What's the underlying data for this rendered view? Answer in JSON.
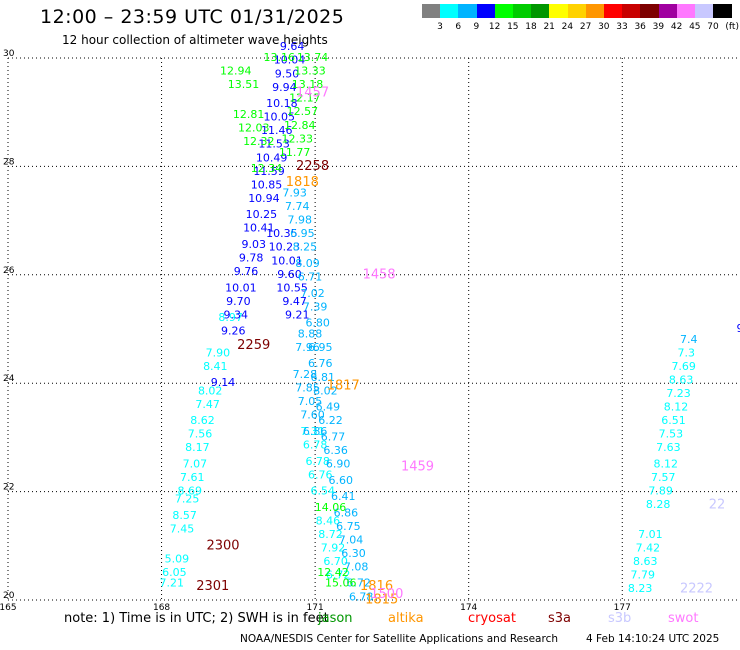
{
  "header": {
    "title": "12:00 – 23:59 UTC 01/31/2025",
    "subtitle": "12 hour collection of altimeter wave heights"
  },
  "color_scale": {
    "unit": "(ft)",
    "levels": [
      {
        "label": "3",
        "color": "#808080"
      },
      {
        "label": "6",
        "color": "#00ffff"
      },
      {
        "label": "9",
        "color": "#00b4ff"
      },
      {
        "label": "12",
        "color": "#0000ff"
      },
      {
        "label": "15",
        "color": "#00ff00"
      },
      {
        "label": "18",
        "color": "#00cc00"
      },
      {
        "label": "21",
        "color": "#009600"
      },
      {
        "label": "24",
        "color": "#ffff00"
      },
      {
        "label": "27",
        "color": "#ffd200"
      },
      {
        "label": "30",
        "color": "#ff9600"
      },
      {
        "label": "33",
        "color": "#ff0000"
      },
      {
        "label": "36",
        "color": "#c80000"
      },
      {
        "label": "39",
        "color": "#7d0000"
      },
      {
        "label": "42",
        "color": "#a000a0"
      },
      {
        "label": "45",
        "color": "#ff78ff"
      },
      {
        "label": "70",
        "color": "#c8c8ff"
      },
      {
        "label": "",
        "color": "#000000"
      }
    ]
  },
  "chart_data": {
    "type": "scatter",
    "title": "12:00 – 23:59 UTC 01/31/2025",
    "subtitle": "12 hour collection of altimeter wave heights",
    "xlim": [
      165,
      179.3
    ],
    "ylim": [
      20,
      30
    ],
    "x_ticks": [
      165,
      168,
      171,
      174,
      177
    ],
    "y_ticks": [
      20,
      22,
      24,
      26,
      28,
      30
    ],
    "grid": true,
    "series": [
      {
        "name": "sentinel",
        "color": "#00ffff",
        "points": [
          {
            "x": 168.2,
            "y": 20.3,
            "label": "7.21"
          },
          {
            "x": 168.25,
            "y": 20.5,
            "label": "6.05"
          },
          {
            "x": 168.3,
            "y": 20.75,
            "label": "5.09"
          },
          {
            "x": 168.4,
            "y": 21.3,
            "label": "7.45"
          },
          {
            "x": 168.45,
            "y": 21.55,
            "label": "8.57"
          },
          {
            "x": 168.5,
            "y": 21.85,
            "label": "7.25"
          },
          {
            "x": 168.55,
            "y": 22.0,
            "label": "8.69"
          },
          {
            "x": 168.6,
            "y": 22.25,
            "label": "7.61"
          },
          {
            "x": 168.65,
            "y": 22.5,
            "label": "7.07"
          },
          {
            "x": 168.7,
            "y": 22.8,
            "label": "8.17"
          },
          {
            "x": 168.75,
            "y": 23.05,
            "label": "7.56"
          },
          {
            "x": 168.8,
            "y": 23.3,
            "label": "8.62"
          },
          {
            "x": 168.9,
            "y": 23.6,
            "label": "7.47"
          },
          {
            "x": 168.95,
            "y": 23.85,
            "label": "8.02"
          },
          {
            "x": 169.05,
            "y": 24.3,
            "label": "8.41"
          },
          {
            "x": 169.1,
            "y": 24.55,
            "label": "7.90"
          },
          {
            "x": 169.35,
            "y": 25.2,
            "label": "8.97"
          },
          {
            "x": 170.95,
            "y": 23.1,
            "label": "7.31"
          },
          {
            "x": 171.0,
            "y": 22.85,
            "label": "6.78"
          },
          {
            "x": 171.05,
            "y": 22.55,
            "label": "6.78"
          },
          {
            "x": 171.1,
            "y": 22.3,
            "label": "6.76"
          },
          {
            "x": 171.15,
            "y": 22.0,
            "label": "6.54"
          },
          {
            "x": 171.25,
            "y": 21.45,
            "label": "8.46"
          },
          {
            "x": 171.3,
            "y": 21.2,
            "label": "8.72"
          },
          {
            "x": 171.35,
            "y": 20.95,
            "label": "7.92"
          },
          {
            "x": 171.4,
            "y": 20.7,
            "label": "6.70"
          },
          {
            "x": 171.45,
            "y": 20.45,
            "label": "6.72"
          },
          {
            "x": 177.35,
            "y": 20.2,
            "label": "8.23"
          },
          {
            "x": 177.4,
            "y": 20.45,
            "label": "7.79"
          },
          {
            "x": 177.45,
            "y": 20.7,
            "label": "8.63"
          },
          {
            "x": 177.5,
            "y": 20.95,
            "label": "7.42"
          },
          {
            "x": 177.55,
            "y": 21.2,
            "label": "7.01"
          },
          {
            "x": 177.7,
            "y": 21.75,
            "label": "8.28"
          },
          {
            "x": 177.75,
            "y": 22.0,
            "label": "7.89"
          },
          {
            "x": 177.8,
            "y": 22.25,
            "label": "7.57"
          },
          {
            "x": 177.85,
            "y": 22.5,
            "label": "8.12"
          },
          {
            "x": 177.9,
            "y": 22.8,
            "label": "7.63"
          },
          {
            "x": 177.95,
            "y": 23.05,
            "label": "7.53"
          },
          {
            "x": 178.0,
            "y": 23.3,
            "label": "6.51"
          },
          {
            "x": 178.05,
            "y": 23.55,
            "label": "8.12"
          },
          {
            "x": 178.1,
            "y": 23.8,
            "label": "7.23"
          },
          {
            "x": 178.15,
            "y": 24.05,
            "label": "8.63"
          },
          {
            "x": 178.2,
            "y": 24.3,
            "label": "7.69"
          },
          {
            "x": 178.25,
            "y": 24.55,
            "label": "7.3"
          }
        ]
      },
      {
        "name": "jason",
        "color": "#0000ff",
        "points": [
          {
            "x": 169.2,
            "y": 24.0,
            "label": "9.14"
          },
          {
            "x": 169.4,
            "y": 24.95,
            "label": "9.26"
          },
          {
            "x": 169.45,
            "y": 25.25,
            "label": "9.34"
          },
          {
            "x": 169.5,
            "y": 25.5,
            "label": "9.70"
          },
          {
            "x": 169.55,
            "y": 25.75,
            "label": "10.01"
          },
          {
            "x": 169.65,
            "y": 26.05,
            "label": "9.76"
          },
          {
            "x": 169.75,
            "y": 26.3,
            "label": "9.78"
          },
          {
            "x": 169.8,
            "y": 26.55,
            "label": "9.03"
          },
          {
            "x": 169.9,
            "y": 26.85,
            "label": "10.41"
          },
          {
            "x": 169.95,
            "y": 27.1,
            "label": "10.25"
          },
          {
            "x": 170.0,
            "y": 27.4,
            "label": "10.94"
          },
          {
            "x": 170.05,
            "y": 27.65,
            "label": "10.85"
          },
          {
            "x": 170.1,
            "y": 27.9,
            "label": "11.59"
          },
          {
            "x": 170.15,
            "y": 28.15,
            "label": "10.49"
          },
          {
            "x": 170.2,
            "y": 28.4,
            "label": "11.53"
          },
          {
            "x": 170.25,
            "y": 28.65,
            "label": "11.46"
          },
          {
            "x": 170.3,
            "y": 28.9,
            "label": "10.05"
          },
          {
            "x": 170.35,
            "y": 29.15,
            "label": "10.18"
          },
          {
            "x": 170.4,
            "y": 29.45,
            "label": "9.94"
          },
          {
            "x": 170.45,
            "y": 29.7,
            "label": "9.50"
          },
          {
            "x": 170.5,
            "y": 29.95,
            "label": "10.04"
          },
          {
            "x": 170.55,
            "y": 30.2,
            "label": "9.64"
          },
          {
            "x": 170.35,
            "y": 26.75,
            "label": "10.35"
          },
          {
            "x": 170.4,
            "y": 26.5,
            "label": "10.23"
          },
          {
            "x": 170.45,
            "y": 26.25,
            "label": "10.01"
          },
          {
            "x": 170.5,
            "y": 26.0,
            "label": "9.60"
          },
          {
            "x": 170.55,
            "y": 25.75,
            "label": "10.55"
          },
          {
            "x": 170.6,
            "y": 25.5,
            "label": "9.47"
          },
          {
            "x": 170.65,
            "y": 25.25,
            "label": "9.21"
          },
          {
            "x": 179.3,
            "y": 25.0,
            "label": "9"
          }
        ]
      },
      {
        "name": "jason",
        "color": "#00b4ff",
        "points": [
          {
            "x": 170.6,
            "y": 27.5,
            "label": "7.93"
          },
          {
            "x": 170.65,
            "y": 27.25,
            "label": "7.74"
          },
          {
            "x": 170.7,
            "y": 27.0,
            "label": "7.98"
          },
          {
            "x": 170.75,
            "y": 26.75,
            "label": "6.95"
          },
          {
            "x": 170.8,
            "y": 26.5,
            "label": "8.25"
          },
          {
            "x": 170.85,
            "y": 26.2,
            "label": "8.09"
          },
          {
            "x": 170.9,
            "y": 25.95,
            "label": "6.71"
          },
          {
            "x": 170.95,
            "y": 25.65,
            "label": "7.02"
          },
          {
            "x": 171.0,
            "y": 25.4,
            "label": "7.39"
          },
          {
            "x": 171.05,
            "y": 25.1,
            "label": "6.80"
          },
          {
            "x": 170.9,
            "y": 24.9,
            "label": "8.88"
          },
          {
            "x": 170.85,
            "y": 24.65,
            "label": "7.96"
          },
          {
            "x": 171.1,
            "y": 24.65,
            "label": "6.95"
          },
          {
            "x": 171.1,
            "y": 24.35,
            "label": "6.76"
          },
          {
            "x": 170.8,
            "y": 24.15,
            "label": "7.28"
          },
          {
            "x": 170.85,
            "y": 23.9,
            "label": "7.85"
          },
          {
            "x": 171.15,
            "y": 24.1,
            "label": "6.81"
          },
          {
            "x": 171.2,
            "y": 23.85,
            "label": "8.02"
          },
          {
            "x": 170.9,
            "y": 23.65,
            "label": "7.05"
          },
          {
            "x": 170.95,
            "y": 23.4,
            "label": "7.60"
          },
          {
            "x": 171.25,
            "y": 23.55,
            "label": "6.49"
          },
          {
            "x": 171.3,
            "y": 23.3,
            "label": "6.22"
          },
          {
            "x": 171.0,
            "y": 23.1,
            "label": "6.86"
          },
          {
            "x": 171.35,
            "y": 23.0,
            "label": "6.77"
          },
          {
            "x": 171.4,
            "y": 22.75,
            "label": "6.36"
          },
          {
            "x": 171.45,
            "y": 22.5,
            "label": "6.90"
          },
          {
            "x": 171.5,
            "y": 22.2,
            "label": "6.60"
          },
          {
            "x": 171.55,
            "y": 21.9,
            "label": "6.41"
          },
          {
            "x": 171.6,
            "y": 21.6,
            "label": "6.86"
          },
          {
            "x": 171.65,
            "y": 21.35,
            "label": "6.75"
          },
          {
            "x": 171.7,
            "y": 21.1,
            "label": "7.04"
          },
          {
            "x": 171.75,
            "y": 20.85,
            "label": "6.30"
          },
          {
            "x": 171.8,
            "y": 20.6,
            "label": "7.08"
          },
          {
            "x": 171.85,
            "y": 20.3,
            "label": "6.72"
          },
          {
            "x": 171.9,
            "y": 20.05,
            "label": "6.78"
          },
          {
            "x": 178.3,
            "y": 24.8,
            "label": "7.4"
          }
        ]
      },
      {
        "name": "jason",
        "color": "#00ff00",
        "points": [
          {
            "x": 169.45,
            "y": 29.75,
            "label": "12.94"
          },
          {
            "x": 169.6,
            "y": 29.5,
            "label": "13.51"
          },
          {
            "x": 169.7,
            "y": 28.95,
            "label": "12.81"
          },
          {
            "x": 169.8,
            "y": 28.7,
            "label": "12.03"
          },
          {
            "x": 169.9,
            "y": 28.45,
            "label": "12.32"
          },
          {
            "x": 170.05,
            "y": 27.95,
            "label": "12.34"
          },
          {
            "x": 170.3,
            "y": 30.0,
            "label": "13.16"
          },
          {
            "x": 170.95,
            "y": 30.0,
            "label": "13.74"
          },
          {
            "x": 170.9,
            "y": 29.75,
            "label": "13.33"
          },
          {
            "x": 170.85,
            "y": 29.5,
            "label": "13.18"
          },
          {
            "x": 170.8,
            "y": 29.25,
            "label": "12.17"
          },
          {
            "x": 170.75,
            "y": 29.0,
            "label": "12.57"
          },
          {
            "x": 170.7,
            "y": 28.75,
            "label": "12.84"
          },
          {
            "x": 170.65,
            "y": 28.5,
            "label": "12.33"
          },
          {
            "x": 170.6,
            "y": 28.25,
            "label": "11.77"
          },
          {
            "x": 171.3,
            "y": 21.7,
            "label": "14.06"
          },
          {
            "x": 171.35,
            "y": 20.5,
            "label": "12.42"
          },
          {
            "x": 171.5,
            "y": 20.3,
            "label": "15.06"
          }
        ]
      },
      {
        "name": "altika",
        "color": "#ff9600",
        "points": [
          {
            "x": 170.75,
            "y": 27.7,
            "label": "1818"
          },
          {
            "x": 171.55,
            "y": 23.95,
            "label": "1817"
          },
          {
            "x": 172.2,
            "y": 20.25,
            "label": "1816"
          },
          {
            "x": 172.3,
            "y": 20.0,
            "label": "1815"
          }
        ]
      },
      {
        "name": "s3a",
        "color": "#7d0000",
        "points": [
          {
            "x": 170.95,
            "y": 28.0,
            "label": "2258"
          },
          {
            "x": 169.8,
            "y": 24.7,
            "label": "2259"
          },
          {
            "x": 169.2,
            "y": 21.0,
            "label": "2300"
          },
          {
            "x": 169.0,
            "y": 20.25,
            "label": "2301"
          }
        ]
      },
      {
        "name": "s3b",
        "color": "#c8c8ff",
        "points": [
          {
            "x": 178.85,
            "y": 21.75,
            "label": "22"
          },
          {
            "x": 178.45,
            "y": 20.2,
            "label": "2222"
          }
        ]
      },
      {
        "name": "swot",
        "color": "#ff78ff",
        "points": [
          {
            "x": 170.95,
            "y": 29.35,
            "label": "1457"
          },
          {
            "x": 172.25,
            "y": 26.0,
            "label": "1458"
          },
          {
            "x": 173.0,
            "y": 22.45,
            "label": "1459"
          },
          {
            "x": 172.4,
            "y": 20.1,
            "label": "1500"
          }
        ]
      }
    ]
  },
  "legend": {
    "note": "note:  1) Time is in UTC; 2) SWH is in feet",
    "missions": [
      {
        "name": "jason",
        "color": "#009600"
      },
      {
        "name": "altika",
        "color": "#ff9600"
      },
      {
        "name": "cryosat",
        "color": "#ff0000"
      },
      {
        "name": "s3a",
        "color": "#7d0000"
      },
      {
        "name": "s3b",
        "color": "#c8c8ff"
      },
      {
        "name": "swot",
        "color": "#ff78ff"
      }
    ]
  },
  "footer": {
    "credit": "NOAA/NESDIS Center for Satellite Applications and Research",
    "timestamp": "4 Feb 14:10:24 UTC 2025"
  }
}
